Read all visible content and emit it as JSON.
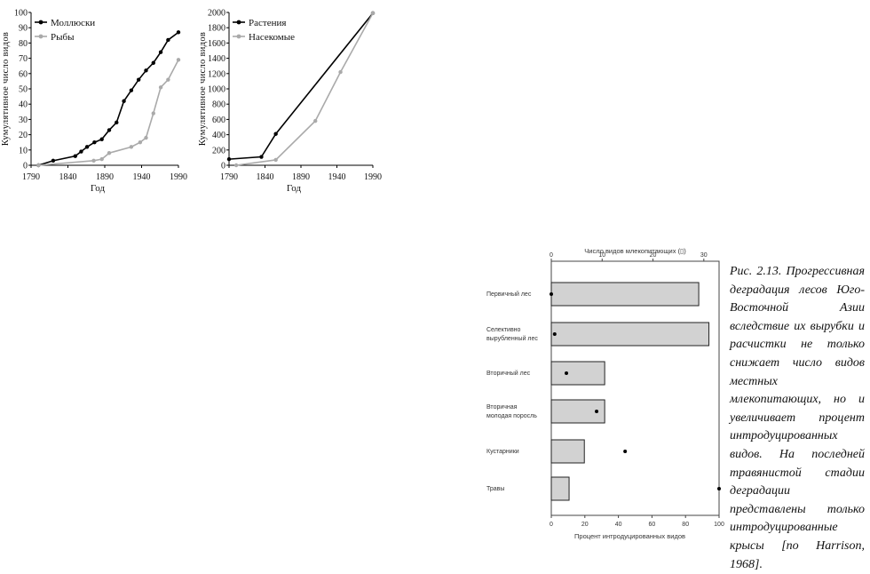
{
  "chart_data": [
    {
      "type": "line",
      "xlabel": "Год",
      "ylabel": "Кумулятивное число видов",
      "xlim": [
        1790,
        1990
      ],
      "ylim": [
        0,
        100
      ],
      "xticks": [
        1790,
        1840,
        1890,
        1940,
        1990
      ],
      "yticks": [
        0,
        10,
        20,
        30,
        40,
        50,
        60,
        70,
        80,
        90,
        100
      ],
      "legend_position": "top-left",
      "series": [
        {
          "name": "Моллюски",
          "color": "#000000",
          "x": [
            1800,
            1820,
            1850,
            1858,
            1866,
            1876,
            1886,
            1896,
            1906,
            1916,
            1926,
            1936,
            1946,
            1956,
            1966,
            1976,
            1990
          ],
          "y": [
            0,
            3,
            6,
            9,
            12,
            15,
            17,
            23,
            28,
            42,
            49,
            56,
            62,
            67,
            74,
            82,
            87
          ]
        },
        {
          "name": "Рыбы",
          "color": "#aaaaaa",
          "x": [
            1800,
            1875,
            1886,
            1896,
            1926,
            1938,
            1946,
            1956,
            1966,
            1976,
            1990
          ],
          "y": [
            0,
            3,
            4,
            8,
            12,
            15,
            18,
            34,
            51,
            56,
            69
          ]
        }
      ]
    },
    {
      "type": "line",
      "xlabel": "Год",
      "ylabel": "Кумулятивное число видов",
      "xlim": [
        1790,
        1990
      ],
      "ylim": [
        0,
        2000
      ],
      "xticks": [
        1790,
        1840,
        1890,
        1940,
        1990
      ],
      "yticks": [
        0,
        200,
        400,
        600,
        800,
        1000,
        1200,
        1400,
        1600,
        1800,
        2000
      ],
      "legend_position": "top-left",
      "series": [
        {
          "name": "Растения",
          "color": "#000000",
          "x": [
            1790,
            1835,
            1855,
            1990
          ],
          "y": [
            80,
            110,
            410,
            1990
          ]
        },
        {
          "name": "Насекомые",
          "color": "#aaaaaa",
          "x": [
            1800,
            1855,
            1910,
            1945,
            1990
          ],
          "y": [
            0,
            70,
            580,
            1220,
            1990
          ]
        }
      ]
    },
    {
      "type": "bar",
      "orientation": "horizontal",
      "top_axis_label": "Число видов млекопитающих",
      "top_axis_marker": "(▯)",
      "bottom_axis_label": "Процент интродуцированных видов",
      "top_xlim": [
        0,
        33
      ],
      "top_xticks": [
        0,
        10,
        20,
        30
      ],
      "bottom_xlim": [
        0,
        100
      ],
      "bottom_xticks": [
        0,
        20,
        40,
        60,
        80,
        100
      ],
      "categories": [
        [
          "Первичный лес"
        ],
        [
          "Селективно",
          "вырубленный лес"
        ],
        [
          "Вторичный лес"
        ],
        [
          "Вторичная",
          "молодая поросль"
        ],
        [
          "Кустарники"
        ],
        [
          "Травы"
        ]
      ],
      "series": [
        {
          "name": "Число видов млекопитающих",
          "values": [
            29,
            31,
            10.5,
            10.5,
            6.5,
            3.5
          ]
        },
        {
          "name": "Процент интродуцированных видов",
          "values": [
            0,
            2,
            9,
            27,
            44,
            100
          ]
        }
      ]
    }
  ],
  "caption": "Рис. 2.13. Прогрессивная деградация лесов Юго-Восточной Азии вследствие их вырубки и расчистки не только снижает число видов местных млекопитающих, но и увеличивает процент интродуцированных видов. На последней травянистой стадии деградации представлены только интродуцированные крысы [по Harrison, 1968]."
}
